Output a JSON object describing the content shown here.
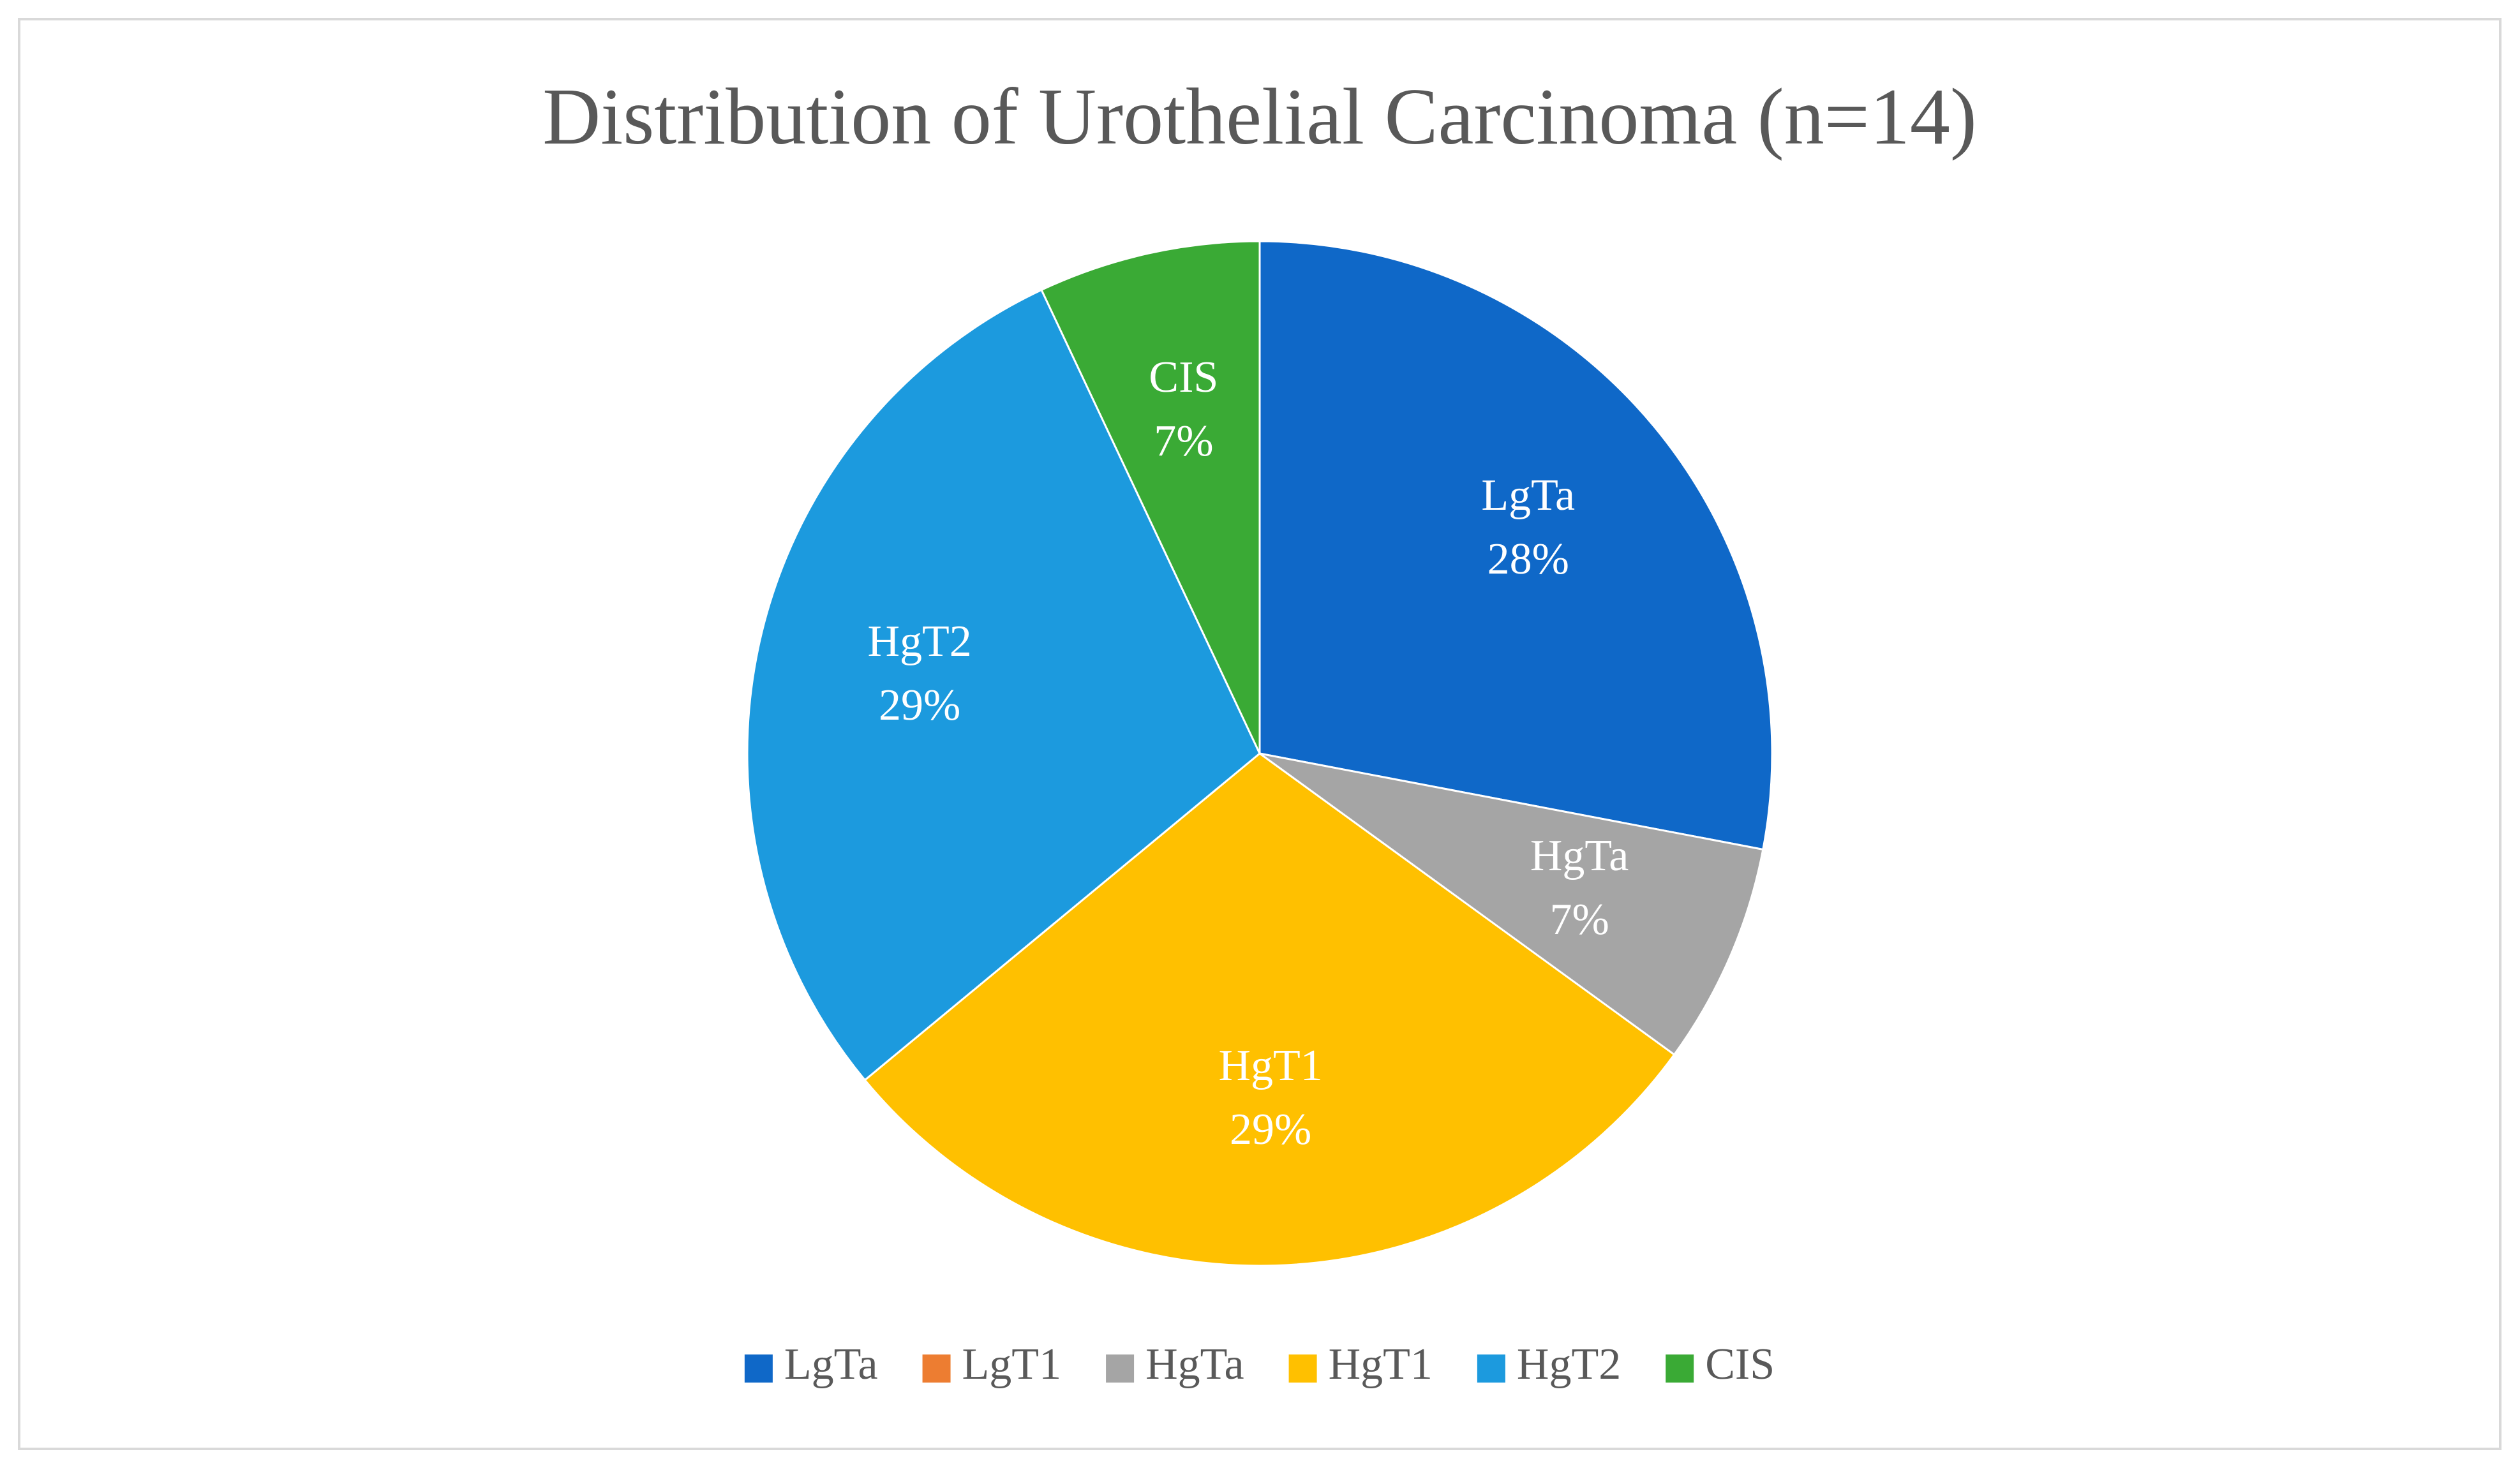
{
  "chart_data": {
    "type": "pie",
    "title": "Distribution of Urothelial Carcinoma (n=14)",
    "categories": [
      "LgTa",
      "LgT1",
      "HgTa",
      "HgT1",
      "HgT2",
      "CIS"
    ],
    "values": [
      28,
      0,
      7,
      29,
      29,
      7
    ],
    "value_labels": [
      "28%",
      null,
      "7%",
      "29%",
      "29%",
      "7%"
    ],
    "colors": [
      "#0f68c8",
      "#ed7d31",
      "#a5a5a5",
      "#ffc000",
      "#1c9ade",
      "#3aaa35"
    ],
    "legend": "bottom"
  }
}
